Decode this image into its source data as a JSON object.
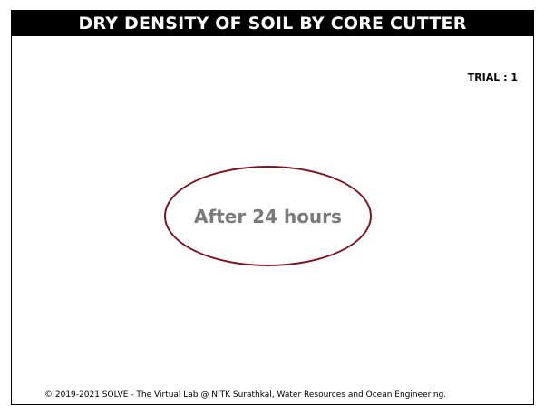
{
  "header": {
    "title": "DRY DENSITY OF SOIL BY CORE CUTTER"
  },
  "trial": {
    "label": "TRIAL : 1"
  },
  "status": {
    "message": "After 24 hours"
  },
  "footer": {
    "copyright": "© 2019-2021 SOLVE - The Virtual Lab @ NITK Surathkal, Water Resources and Ocean Engineering."
  },
  "colors": {
    "title_bar_bg": "#000000",
    "title_text": "#ffffff",
    "ellipse_border": "#7b1524",
    "message_text": "#7a7a7a"
  }
}
